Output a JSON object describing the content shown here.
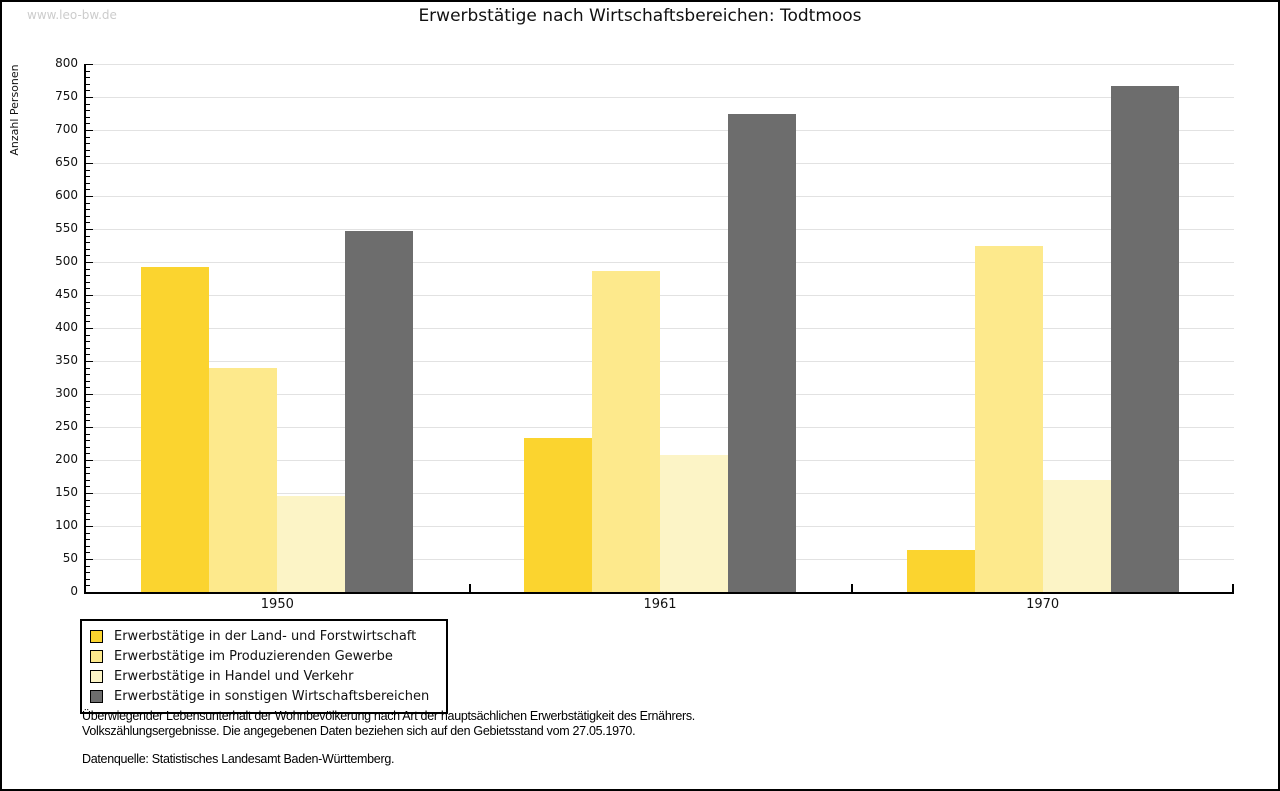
{
  "page": {
    "watermark": "www.leo-bw.de"
  },
  "chart_data": {
    "type": "bar",
    "title": "Erwerbstätige nach Wirtschaftsbereichen: Todtmoos",
    "xlabel": "",
    "ylabel": "Anzahl Personen",
    "ylim": [
      0,
      800
    ],
    "y_major_step": 50,
    "y_minor_step": 10,
    "grid": true,
    "legend_position": "bottom-left",
    "categories": [
      "1950",
      "1961",
      "1970"
    ],
    "series": [
      {
        "name": "Erwerbstätige in der Land- und Forstwirtschaft",
        "color": "#fbd42f",
        "values": [
          493,
          233,
          64
        ]
      },
      {
        "name": "Erwerbstätige im Produzierenden Gewerbe",
        "color": "#fde98c",
        "values": [
          339,
          487,
          524
        ]
      },
      {
        "name": "Erwerbstätige in Handel und Verkehr",
        "color": "#fcf4c6",
        "values": [
          145,
          207,
          170
        ]
      },
      {
        "name": "Erwerbstätige in sonstigen Wirtschaftsbereichen",
        "color": "#6d6d6d",
        "values": [
          547,
          724,
          766
        ]
      }
    ],
    "colors": {
      "gridline": "#e2e2e2",
      "axis": "#000000"
    }
  },
  "footer": {
    "line1": "Überwiegender Lebensunterhalt der Wohnbevölkerung nach Art der hauptsächlichen Erwerbstätigkeit des Ernährers.",
    "line2": "Volkszählungsergebnisse. Die angegebenen Daten beziehen sich auf den Gebietsstand vom 27.05.1970.",
    "source": "Datenquelle: Statistisches Landesamt Baden-Württemberg."
  }
}
